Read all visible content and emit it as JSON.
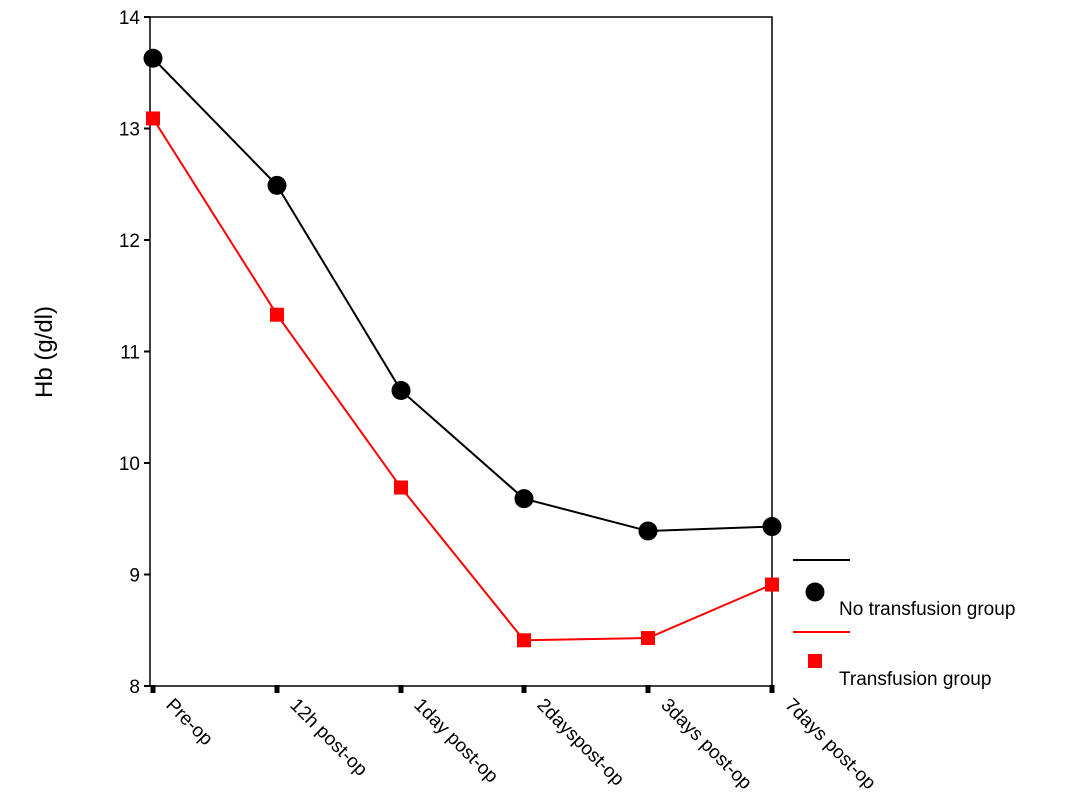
{
  "chart_data": {
    "type": "line",
    "title": "",
    "xlabel": "",
    "ylabel": "Hb (g/dl)",
    "categories": [
      "Pre-op",
      "12h post-op",
      "1day post-op",
      "2dayspost-op",
      "3days post-op",
      "7days post-op"
    ],
    "ylim": [
      8,
      14
    ],
    "yticks": [
      8,
      9,
      10,
      11,
      12,
      13,
      14
    ],
    "grid": false,
    "legend_position": "bottom-right",
    "series": [
      {
        "name": "No transfusion group",
        "marker": "circle",
        "color": "#000000",
        "values": [
          13.63,
          12.49,
          10.65,
          9.68,
          9.39,
          9.43
        ]
      },
      {
        "name": "Transfusion group",
        "marker": "square",
        "color": "#ff0000",
        "values": [
          13.09,
          11.33,
          9.78,
          8.41,
          8.43,
          8.91
        ]
      }
    ]
  }
}
